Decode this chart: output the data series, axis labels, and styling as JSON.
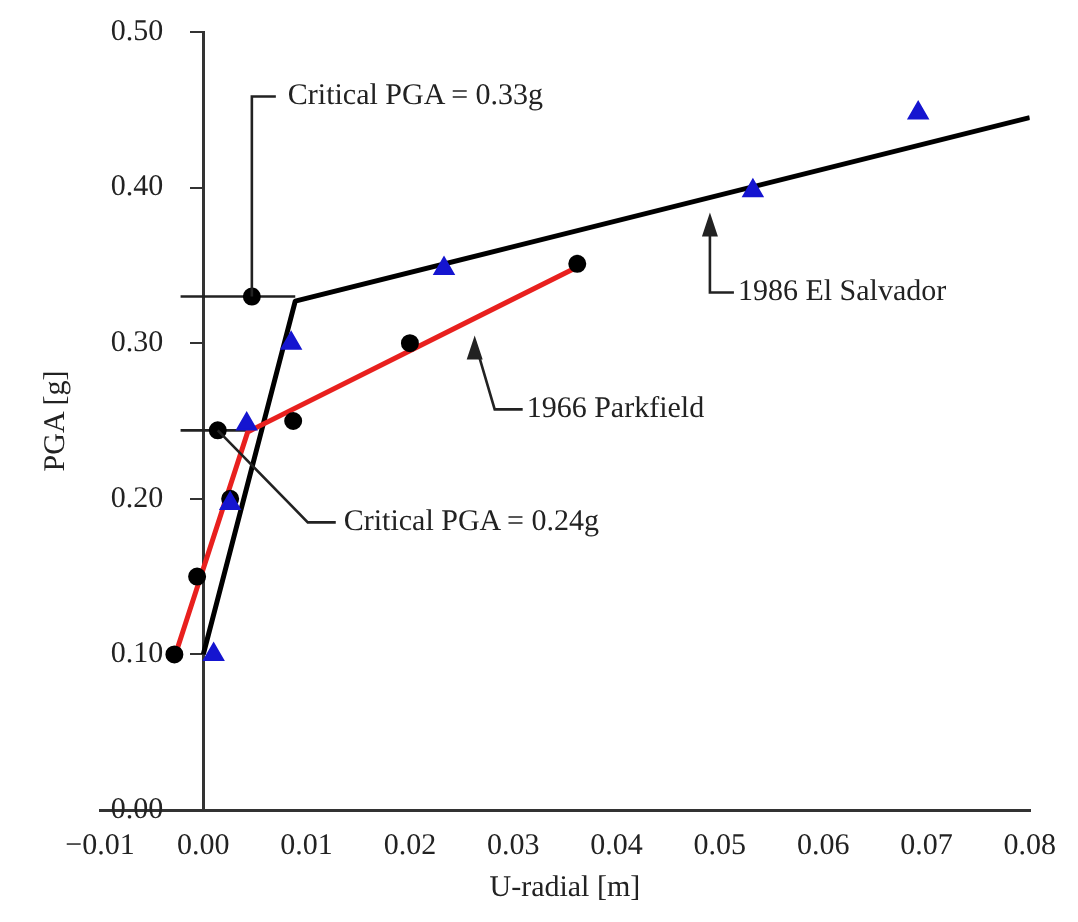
{
  "chart_data": {
    "type": "scatter",
    "xlabel": "U-radial [m]",
    "ylabel": "PGA [g]",
    "xlim": [
      -0.01,
      0.08
    ],
    "xticks": [
      {
        "value": -0.01,
        "label": "−0.01"
      },
      {
        "value": 0,
        "label": "0.00"
      },
      {
        "value": 0.01,
        "label": "0.01"
      },
      {
        "value": 0.02,
        "label": "0.02"
      },
      {
        "value": 0.03,
        "label": "0.03"
      },
      {
        "value": 0.04,
        "label": "0.04"
      },
      {
        "value": 0.05,
        "label": "0.05"
      },
      {
        "value": 0.06,
        "label": "0.06"
      },
      {
        "value": 0.07,
        "label": "0.07"
      },
      {
        "value": 0.08,
        "label": "0.08"
      }
    ],
    "ylim": [
      0,
      0.5
    ],
    "yticks": [
      {
        "value": 0,
        "label": "0.00"
      },
      {
        "value": 0.1,
        "label": "0.10"
      },
      {
        "value": 0.2,
        "label": "0.20"
      },
      {
        "value": 0.3,
        "label": "0.30"
      },
      {
        "value": 0.4,
        "label": "0.40"
      },
      {
        "value": 0.5,
        "label": "0.50"
      }
    ],
    "grid": false,
    "legend": false,
    "series": [
      {
        "type": "line",
        "color": "#e8201e",
        "x": [
          -0.0027,
          0.0043,
          0.0365
        ],
        "values": [
          0.1,
          0.243,
          0.35
        ],
        "marker": "none"
      },
      {
        "type": "line",
        "color": "#000000",
        "x": [
          0,
          0.0089,
          0.08
        ],
        "values": [
          0.1,
          0.327,
          0.445
        ],
        "marker": "none"
      },
      {
        "type": "line",
        "color": "#222222",
        "x": [
          -0.0022,
          0.0089
        ],
        "values": [
          0.33,
          0.33
        ],
        "marker": "none"
      },
      {
        "type": "line",
        "color": "#222222",
        "x": [
          -0.0022,
          0.0043
        ],
        "values": [
          0.244,
          0.244
        ],
        "marker": "none"
      },
      {
        "color": "#000000",
        "marker": "circle",
        "x": [
          -0.0028,
          -0.0006,
          0.0026,
          0.0014,
          0.0087,
          0.02,
          0.0047,
          0.0362
        ],
        "values": [
          0.1,
          0.15,
          0.2,
          0.244,
          0.25,
          0.3,
          0.33,
          0.351
        ]
      },
      {
        "color": "#1515d0",
        "marker": "triangle",
        "x": [
          0.001,
          0.0026,
          0.0042,
          0.0085,
          0.0233,
          0.0532,
          0.0692
        ],
        "values": [
          0.1,
          0.197,
          0.248,
          0.3,
          0.348,
          0.398,
          0.448
        ]
      }
    ],
    "annotations": [
      {
        "text": "Critical PGA = 0.33g",
        "x": 0.0047,
        "y": 0.33
      },
      {
        "text": "Critical PGA = 0.24g",
        "x": 0.0014,
        "y": 0.244
      },
      "1986 El Salvador",
      "1966 Parkfield"
    ]
  }
}
